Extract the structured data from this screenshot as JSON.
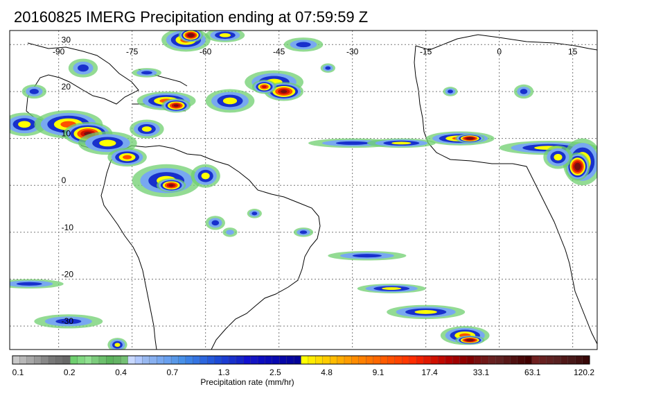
{
  "title": "20160825 IMERG Precipitation ending at 07:59:59 Z",
  "map": {
    "lon_labels": [
      "-90",
      "-75",
      "-60",
      "-45",
      "-30",
      "-15",
      "0",
      "15"
    ],
    "lat_labels": [
      "30",
      "20",
      "10",
      "0",
      "-10",
      "-20",
      "-30"
    ],
    "lon_range": [
      -100,
      20
    ],
    "lat_range": [
      -35,
      33
    ],
    "grid": true
  },
  "colorbar": {
    "title": "Precipitation rate (mm/hr)",
    "labels": [
      "0.1",
      "0.2",
      "0.4",
      "0.7",
      "1.3",
      "2.5",
      "4.8",
      "9.1",
      "17.4",
      "33.1",
      "63.1",
      "120.2"
    ],
    "colors": [
      "#c8c8c8",
      "#b8b8b8",
      "#a8a8a8",
      "#989898",
      "#888888",
      "#787878",
      "#707070",
      "#686868",
      "#6fcf6f",
      "#80d880",
      "#90e090",
      "#7ccc7c",
      "#6cc06c",
      "#5cb45c",
      "#64b464",
      "#74c074",
      "#c8d8ff",
      "#b0c8ff",
      "#98b8f0",
      "#88b0f0",
      "#78a8f0",
      "#68a0f0",
      "#5898e8",
      "#4890e8",
      "#3c82e6",
      "#3474e2",
      "#2c66de",
      "#2458da",
      "#1c4ad6",
      "#1c3cd2",
      "#1830cc",
      "#1424c8",
      "#1010d0",
      "#1414c4",
      "#0c0cc0",
      "#0a0ab8",
      "#0808b0",
      "#0606a8",
      "#0404a0",
      "#020298",
      "#ffff00",
      "#ffec00",
      "#ffdc00",
      "#ffcc00",
      "#ffbc00",
      "#ffac00",
      "#ff9c00",
      "#ff8c00",
      "#ff8000",
      "#ff7400",
      "#ff6800",
      "#ff5c00",
      "#ff5000",
      "#ff4400",
      "#ff3800",
      "#ff2c00",
      "#f02000",
      "#e01800",
      "#d01000",
      "#c00800",
      "#b00000",
      "#a00000",
      "#900000",
      "#800000",
      "#781010",
      "#701818",
      "#682020",
      "#602020",
      "#581818",
      "#501010",
      "#480808",
      "#400000",
      "#702020",
      "#682020",
      "#602020",
      "#582020",
      "#501818",
      "#481818",
      "#401010",
      "#380808"
    ]
  }
}
